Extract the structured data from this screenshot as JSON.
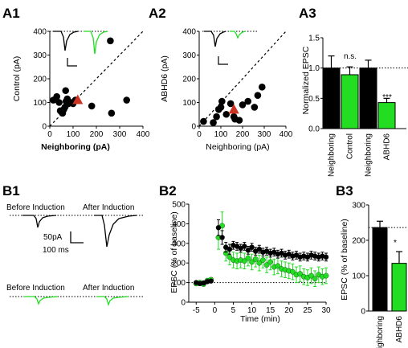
{
  "colors": {
    "green": "#22dd22",
    "red": "#cc3322",
    "black": "#000000"
  },
  "panels": {
    "A1": "A1",
    "A2": "A2",
    "A3": "A3",
    "B1": "B1",
    "B2": "B2",
    "B3": "B3"
  },
  "chart_data": [
    {
      "id": "A1",
      "type": "scatter",
      "xlabel": "Neighboring  (pA)",
      "ylabel": "Control (pA)",
      "xlim": [
        0,
        400
      ],
      "ylim": [
        0,
        400
      ],
      "xticks": [
        "0",
        "100",
        "200",
        "300",
        "400"
      ],
      "yticks": [
        "0",
        "100",
        "200",
        "300",
        "400"
      ],
      "unity_line": true,
      "points": [
        [
          15,
          110
        ],
        [
          30,
          125
        ],
        [
          40,
          100
        ],
        [
          45,
          65
        ],
        [
          50,
          60
        ],
        [
          55,
          55
        ],
        [
          60,
          70
        ],
        [
          65,
          80
        ],
        [
          68,
          150
        ],
        [
          70,
          105
        ],
        [
          75,
          115
        ],
        [
          80,
          95
        ],
        [
          90,
          100
        ],
        [
          100,
          95
        ],
        [
          110,
          110
        ],
        [
          180,
          85
        ],
        [
          260,
          360
        ],
        [
          265,
          55
        ],
        [
          330,
          110
        ]
      ],
      "mean": [
        120,
        110
      ]
    },
    {
      "id": "A2",
      "type": "scatter",
      "xlabel": "Neighboring  (pA)",
      "ylabel": "ABHD6 (pA)",
      "xlim": [
        0,
        400
      ],
      "ylim": [
        0,
        400
      ],
      "xticks": [
        "0",
        "100",
        "200",
        "300",
        "400"
      ],
      "yticks": [
        "0",
        "100",
        "200",
        "300",
        "400"
      ],
      "unity_line": true,
      "points": [
        [
          20,
          20
        ],
        [
          65,
          15
        ],
        [
          80,
          40
        ],
        [
          90,
          70
        ],
        [
          100,
          80
        ],
        [
          105,
          105
        ],
        [
          125,
          50
        ],
        [
          145,
          95
        ],
        [
          160,
          40
        ],
        [
          165,
          30
        ],
        [
          185,
          25
        ],
        [
          200,
          90
        ],
        [
          225,
          105
        ],
        [
          255,
          80
        ],
        [
          270,
          130
        ],
        [
          290,
          165
        ]
      ],
      "mean": [
        160,
        70
      ]
    },
    {
      "id": "A3",
      "type": "bar",
      "ylabel": "Normalized EPSC",
      "ylim": [
        0,
        1.5
      ],
      "yticks": [
        "0.0",
        "0.5",
        "1.0",
        "1.5"
      ],
      "categories": [
        "Neighboring",
        "Control",
        "Neighboring",
        "ABHD6"
      ],
      "values": [
        1.0,
        0.89,
        1.0,
        0.43
      ],
      "errors": [
        0.2,
        0.13,
        0.13,
        0.07
      ],
      "reference": 1.0,
      "annotations": [
        "n.s.",
        "***"
      ]
    },
    {
      "id": "B2",
      "type": "line",
      "xlabel": "Time (min)",
      "ylabel": "EPSC (% of baseline)",
      "xlim": [
        -7,
        30
      ],
      "ylim": [
        0,
        500
      ],
      "xticks": [
        "-5",
        "0",
        "5",
        "10",
        "15",
        "20",
        "25",
        "30"
      ],
      "yticks": [
        "0",
        "100",
        "200",
        "300",
        "400",
        "500"
      ],
      "reference": 100,
      "series": [
        {
          "x": [
            -5,
            -4,
            -3,
            -2,
            -1,
            1,
            2,
            3,
            4,
            5,
            6,
            7,
            8,
            9,
            10,
            11,
            12,
            13,
            14,
            15,
            16,
            17,
            18,
            19,
            20,
            21,
            22,
            23,
            24,
            25,
            26,
            27,
            28,
            29,
            30
          ],
          "y": [
            100,
            95,
            98,
            105,
            108,
            380,
            330,
            280,
            270,
            290,
            285,
            275,
            285,
            265,
            280,
            260,
            270,
            255,
            260,
            250,
            255,
            245,
            250,
            240,
            245,
            235,
            240,
            230,
            235,
            230,
            240,
            235,
            230,
            235,
            230
          ],
          "err": [
            8,
            8,
            8,
            8,
            8,
            40,
            35,
            25,
            25,
            20,
            20,
            20,
            20,
            20,
            20,
            20,
            20,
            20,
            20,
            20,
            20,
            20,
            20,
            20,
            20,
            20,
            20,
            20,
            20,
            20,
            20,
            20,
            20,
            20,
            20
          ]
        },
        {
          "x": [
            -5,
            -4,
            -3,
            -2,
            -1,
            1,
            2,
            3,
            4,
            5,
            6,
            7,
            8,
            9,
            10,
            11,
            12,
            13,
            14,
            15,
            16,
            17,
            18,
            19,
            20,
            21,
            22,
            23,
            24,
            25,
            26,
            27,
            28,
            29,
            30
          ],
          "y": [
            95,
            100,
            92,
            110,
            115,
            330,
            390,
            250,
            230,
            215,
            210,
            215,
            210,
            225,
            205,
            220,
            200,
            215,
            190,
            205,
            180,
            185,
            170,
            165,
            160,
            155,
            140,
            145,
            130,
            125,
            135,
            120,
            140,
            130,
            135
          ],
          "err": [
            10,
            10,
            10,
            10,
            10,
            60,
            70,
            40,
            40,
            40,
            40,
            40,
            40,
            40,
            40,
            40,
            40,
            40,
            40,
            40,
            40,
            40,
            40,
            40,
            40,
            40,
            40,
            40,
            40,
            40,
            40,
            40,
            40,
            40,
            40
          ]
        }
      ]
    },
    {
      "id": "B3",
      "type": "bar",
      "ylabel": "EPSC (% of baseline)",
      "ylim": [
        0,
        300
      ],
      "yticks": [
        "0",
        "100",
        "200",
        "300"
      ],
      "categories": [
        "Neighboring",
        "ABHD6"
      ],
      "values": [
        236,
        135
      ],
      "errors": [
        18,
        33
      ],
      "reference": 236,
      "annotations": [
        "*"
      ]
    }
  ],
  "traces": {
    "before_induction": "Before Induction",
    "after_induction": "After Induction",
    "scale_pA": "50pA",
    "scale_ms": "100 ms"
  }
}
